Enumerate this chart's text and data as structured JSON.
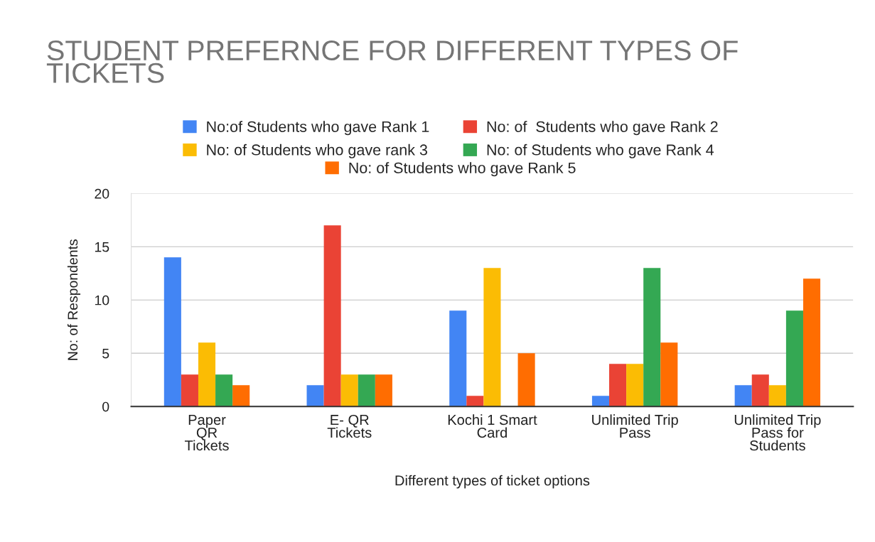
{
  "chart_data": {
    "type": "bar",
    "title": "STUDENT PREFERNCE FOR DIFFERENT TYPES OF\nTICKETS",
    "xlabel": "Different types of ticket options",
    "ylabel": "No: of Respondents",
    "categories": [
      "Paper\nQR\nTickets",
      "E- QR\nTickets",
      "Kochi 1 Smart\nCard",
      "Unlimited Trip\nPass",
      "Unlimited Trip\nPass for\nStudents"
    ],
    "series": [
      {
        "name": "No:of Students who gave Rank 1",
        "color": "#4285f4",
        "values": [
          14,
          2,
          9,
          1,
          2
        ]
      },
      {
        "name": "No: of  Students who gave Rank 2",
        "color": "#ea4335",
        "values": [
          3,
          17,
          1,
          4,
          3
        ]
      },
      {
        "name": "No: of Students who gave rank 3",
        "color": "#fbbc04",
        "values": [
          6,
          3,
          13,
          4,
          2
        ]
      },
      {
        "name": "No: of Students who gave Rank 4",
        "color": "#34a853",
        "values": [
          3,
          3,
          0,
          13,
          9
        ]
      },
      {
        "name": "No: of Students who gave Rank 5",
        "color": "#ff6d01",
        "values": [
          2,
          3,
          5,
          6,
          12
        ]
      }
    ],
    "ylim": [
      0,
      20
    ],
    "yticks": [
      0,
      5,
      10,
      15,
      20
    ],
    "grid": "y",
    "legend": "top"
  }
}
